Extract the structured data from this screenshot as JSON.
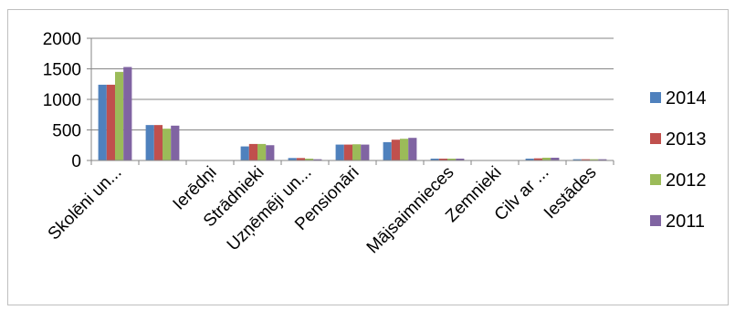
{
  "chart_data": {
    "type": "bar",
    "categories": [
      "Skolēni un...",
      "",
      "Ierēdņi",
      "Strādnieki",
      "Uzņēmēji un...",
      "Pensionāri",
      "",
      "Mājsaimnieces",
      "Zemnieki",
      "Cilv ar ...",
      "Iestādes"
    ],
    "series": [
      {
        "name": "2014",
        "values": [
          1240,
          580,
          5,
          230,
          40,
          260,
          300,
          30,
          5,
          30,
          20
        ]
      },
      {
        "name": "2013",
        "values": [
          1240,
          580,
          5,
          270,
          40,
          260,
          340,
          30,
          5,
          35,
          20
        ]
      },
      {
        "name": "2012",
        "values": [
          1450,
          520,
          5,
          270,
          30,
          265,
          355,
          30,
          5,
          45,
          20
        ]
      },
      {
        "name": "2011",
        "values": [
          1530,
          570,
          5,
          250,
          20,
          260,
          370,
          30,
          5,
          45,
          20
        ]
      }
    ],
    "yticks": [
      0,
      500,
      1000,
      1500,
      2000
    ],
    "ylim": [
      0,
      2000
    ],
    "grid": true,
    "legend": "right",
    "colors": [
      "#4f81bd",
      "#c0504d",
      "#9bbb59",
      "#8064a2"
    ]
  }
}
